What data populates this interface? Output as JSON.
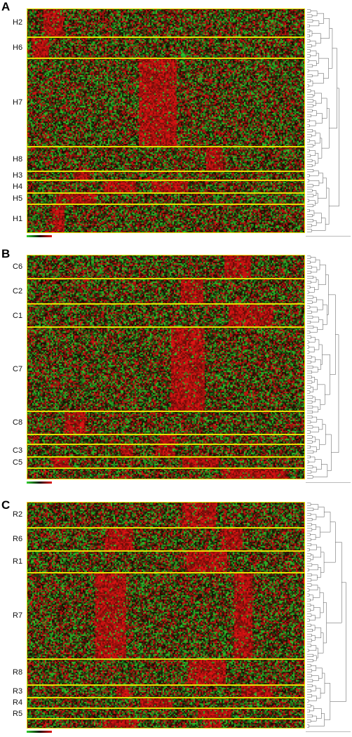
{
  "panels": [
    {
      "letter": "A",
      "clusters": [
        {
          "label": "H2",
          "rows": 40
        },
        {
          "label": "H6",
          "rows": 30
        },
        {
          "label": "H7",
          "rows": 123
        },
        {
          "label": "H8",
          "rows": 35
        },
        {
          "label": "H3",
          "rows": 12
        },
        {
          "label": "H4",
          "rows": 18
        },
        {
          "label": "H5",
          "rows": 16
        },
        {
          "label": "H1",
          "rows": 40
        }
      ]
    },
    {
      "letter": "B",
      "clusters": [
        {
          "label": "C6",
          "rows": 34
        },
        {
          "label": "C2",
          "rows": 36
        },
        {
          "label": "C1",
          "rows": 32
        },
        {
          "label": "C7",
          "rows": 120
        },
        {
          "label": "C8",
          "rows": 32
        },
        {
          "label": "",
          "rows": 14
        },
        {
          "label": "C3",
          "rows": 18
        },
        {
          "label": "C5",
          "rows": 16
        },
        {
          "label": "",
          "rows": 16
        }
      ]
    },
    {
      "letter": "C",
      "clusters": [
        {
          "label": "R2",
          "rows": 38
        },
        {
          "label": "R6",
          "rows": 34
        },
        {
          "label": "R1",
          "rows": 32
        },
        {
          "label": "R7",
          "rows": 128
        },
        {
          "label": "R8",
          "rows": 38
        },
        {
          "label": "R3",
          "rows": 18
        },
        {
          "label": "R4",
          "rows": 16
        },
        {
          "label": "R5",
          "rows": 16
        },
        {
          "label": "",
          "rows": 14
        }
      ]
    }
  ],
  "colors": {
    "high": "#e31414",
    "low": "#2fd12f",
    "neutral": "#0b0b00",
    "separator": "#e8e000"
  }
}
